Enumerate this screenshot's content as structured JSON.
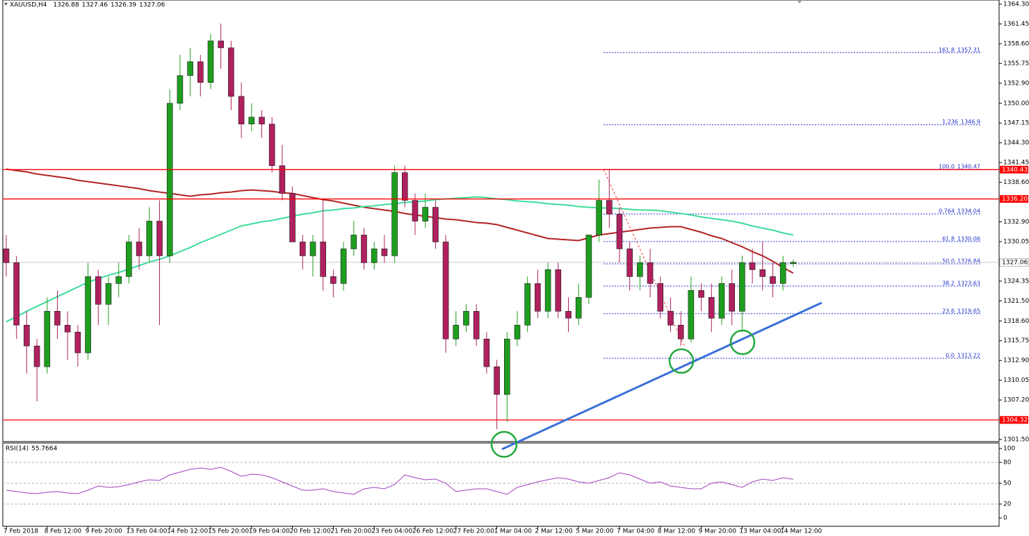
{
  "chart_data": {
    "type": "candlestick",
    "symbol": "XAUUSD,H4",
    "categories": [
      "7 Feb 2018",
      null,
      null,
      null,
      "8 Feb 12:00",
      null,
      null,
      null,
      "9 Feb 20:00",
      null,
      null,
      null,
      "13 Feb 04:00",
      null,
      null,
      null,
      "14 Feb 12:00",
      null,
      null,
      null,
      "15 Feb 20:00",
      null,
      null,
      null,
      "19 Feb 04:00",
      null,
      null,
      null,
      "20 Feb 12:00",
      null,
      null,
      null,
      "21 Feb 20:00",
      null,
      null,
      null,
      "23 Feb 04:00",
      null,
      null,
      null,
      "26 Feb 12:00",
      null,
      null,
      null,
      "27 Feb 20:00",
      null,
      null,
      null,
      "1 Mar 04:00",
      null,
      null,
      null,
      "2 Mar 12:00",
      null,
      null,
      null,
      "5 Mar 20:00",
      null,
      null,
      null,
      "7 Mar 04:00",
      null,
      null,
      null,
      "8 Mar 12:00",
      null,
      null,
      null,
      "9 Mar 20:00",
      null,
      null,
      null,
      "13 Mar 04:00",
      null,
      null,
      null,
      "14 Mar 12:00",
      null
    ],
    "candles": {
      "up_color": "#1e9e1e",
      "down_color": "#b0205e",
      "open": [
        1329,
        1327,
        1318,
        1315,
        1312,
        1320,
        1318,
        1317,
        1314,
        1325,
        1321,
        1324,
        1325,
        1330,
        1328,
        1333,
        1328,
        1350,
        1354,
        1356,
        1353,
        1359,
        1358,
        1351,
        1347,
        1348,
        1347,
        1341,
        1337,
        1330,
        1328,
        1330,
        1325,
        1324,
        1329,
        1331,
        1327,
        1329,
        1328,
        1340,
        1336,
        1333,
        1335,
        1330,
        1316,
        1318,
        1320,
        1316,
        1312,
        1308,
        1316,
        1318,
        1324,
        1320,
        1326,
        1320,
        1319,
        1322,
        1331,
        1336,
        1334,
        1329,
        1325,
        1327,
        1324,
        1320,
        1318,
        1316,
        1323,
        1322,
        1319,
        1324,
        1320,
        1327,
        1326,
        1325,
        1324,
        1326.88
      ],
      "high": [
        1331,
        1328,
        1320,
        1316,
        1322,
        1323,
        1320,
        1318,
        1327,
        1326,
        1325,
        1327,
        1331,
        1332,
        1335,
        1336,
        1352,
        1357,
        1358,
        1357,
        1360,
        1361.5,
        1359,
        1353,
        1350,
        1349,
        1348,
        1344,
        1338,
        1331,
        1331,
        1336,
        1326,
        1330,
        1333,
        1332,
        1330,
        1331,
        1341,
        1341,
        1337,
        1337,
        1336,
        1331,
        1320,
        1321,
        1321,
        1317,
        1313,
        1317,
        1320,
        1325,
        1326,
        1327,
        1327,
        1322,
        1324,
        1331,
        1339,
        1340.5,
        1335,
        1330,
        1328,
        1329,
        1325,
        1322,
        1320,
        1325,
        1324,
        1324,
        1325,
        1326,
        1328,
        1329,
        1330,
        1327,
        1328,
        1327.46
      ],
      "low": [
        1325,
        1316,
        1311,
        1307,
        1311,
        1316,
        1313,
        1312,
        1313,
        1318,
        1318,
        1322,
        1324,
        1326,
        1327,
        1318,
        1327,
        1349,
        1351,
        1351,
        1352,
        1355,
        1349,
        1345,
        1346,
        1345,
        1340,
        1336,
        1330,
        1326,
        1325,
        1323,
        1322,
        1323,
        1328,
        1326,
        1326,
        1327,
        1327,
        1335,
        1331,
        1332,
        1329,
        1314,
        1315,
        1317,
        1315,
        1311,
        1303,
        1304,
        1315,
        1317,
        1319,
        1319,
        1319,
        1317,
        1318,
        1321,
        1330,
        1332,
        1327,
        1323,
        1323,
        1322,
        1319,
        1317,
        1315,
        1315.5,
        1320,
        1317,
        1318,
        1318,
        1317,
        1324,
        1323,
        1322,
        1323,
        1326.39
      ],
      "close": [
        1327,
        1318,
        1315,
        1312,
        1320,
        1318,
        1317,
        1314,
        1325,
        1321,
        1324,
        1325,
        1330,
        1328,
        1333,
        1328,
        1350,
        1354,
        1356,
        1353,
        1359,
        1358,
        1351,
        1347,
        1348,
        1347,
        1341,
        1337,
        1330,
        1328,
        1330,
        1325,
        1324,
        1329,
        1331,
        1327,
        1329,
        1328,
        1340,
        1336,
        1333,
        1335,
        1330,
        1316,
        1318,
        1320,
        1316,
        1312,
        1308,
        1316,
        1318,
        1324,
        1320,
        1326,
        1320,
        1319,
        1322,
        1331,
        1336,
        1334,
        1329,
        1325,
        1327,
        1324,
        1320,
        1318,
        1316,
        1323,
        1322,
        1319,
        1324,
        1320,
        1327,
        1326,
        1325,
        1324,
        1327,
        1327.06
      ]
    },
    "ma": [
      {
        "color": "#b22222",
        "values": [
          1340.5,
          1340.3,
          1340.1,
          1339.8,
          1339.6,
          1339.4,
          1339.2,
          1338.9,
          1338.7,
          1338.5,
          1338.3,
          1338.1,
          1337.9,
          1337.7,
          1337.4,
          1337.2,
          1337,
          1336.8,
          1336.6,
          1336.8,
          1336.9,
          1337.1,
          1337.2,
          1337.4,
          1337.5,
          1337.4,
          1337.3,
          1337.1,
          1337,
          1336.7,
          1336.4,
          1336.1,
          1335.9,
          1335.6,
          1335.3,
          1335,
          1334.8,
          1334.6,
          1334.4,
          1334.1,
          1333.9,
          1333.7,
          1333.5,
          1333.3,
          1333.2,
          1333,
          1332.8,
          1332.7,
          1332.5,
          1332.1,
          1331.7,
          1331.3,
          1330.9,
          1330.5,
          1330.4,
          1330.3,
          1330.2,
          1330.6,
          1331,
          1331.2,
          1331.4,
          1331.6,
          1331.8,
          1332,
          1332.1,
          1332.2,
          1332.2,
          1331.8,
          1331.4,
          1330.9,
          1330.5,
          1329.9,
          1329.3,
          1328.6,
          1328,
          1327.2,
          1326.3,
          1325.5
        ]
      },
      {
        "color": "#3cdc9a",
        "values": [
          1318.5,
          1319.2,
          1320,
          1320.7,
          1321.4,
          1322.1,
          1322.8,
          1323.5,
          1324.2,
          1324.7,
          1325.2,
          1325.6,
          1326.1,
          1326.6,
          1327.1,
          1327.5,
          1328,
          1328.6,
          1329.2,
          1329.9,
          1330.5,
          1331.1,
          1331.7,
          1332.3,
          1332.6,
          1332.9,
          1333.1,
          1333.4,
          1333.7,
          1334,
          1334.2,
          1334.5,
          1334.6,
          1334.8,
          1334.9,
          1335.1,
          1335.2,
          1335.4,
          1335.5,
          1335.7,
          1335.8,
          1335.9,
          1336.1,
          1336.2,
          1336.3,
          1336.4,
          1336.5,
          1336.4,
          1336.2,
          1336.1,
          1335.9,
          1335.8,
          1335.7,
          1335.5,
          1335.4,
          1335.3,
          1335.1,
          1335,
          1334.9,
          1334.9,
          1334.8,
          1334.7,
          1334.6,
          1334.6,
          1334.5,
          1334.3,
          1334.1,
          1333.9,
          1333.6,
          1333.4,
          1333.2,
          1333,
          1332.7,
          1332.3,
          1332,
          1331.7,
          1331.3,
          1331
        ]
      }
    ],
    "ylim": [
      1301.2,
      1364.9
    ],
    "yticks": [
      {
        "value": 1364.3,
        "label": "1364.30"
      },
      1361.45,
      {
        "value": 1358.6,
        "label": "1358.60"
      },
      1355.75,
      {
        "value": 1352.9,
        "label": "1352.90"
      },
      {
        "value": 1350,
        "label": "1350.00"
      },
      1347.15,
      {
        "value": 1344.3,
        "label": "1344.30"
      },
      1341.45,
      {
        "value": 1338.6,
        "label": "1338.60"
      },
      {
        "value": 1332.9,
        "label": "1332.90"
      },
      1330.05,
      1324.35,
      {
        "value": 1321.5,
        "label": "1321.50"
      },
      {
        "value": 1318.6,
        "label": "1318.60"
      },
      1315.75,
      {
        "value": 1312.9,
        "label": "1312.90"
      },
      1310.05,
      {
        "value": 1307.2,
        "label": "1307.20"
      },
      {
        "value": 1301.5,
        "label": "1301.50"
      }
    ],
    "levels": {
      "color": "#ff0000",
      "values": [
        1340.43,
        {
          "value": 1336.2,
          "label": "1336.20"
        },
        1304.32
      ]
    },
    "fib": {
      "color": "#2233cc",
      "levels": [
        {
          "ratio": "161.8",
          "price": 1357.31
        },
        {
          "ratio": "1.236",
          "price": 1346.9
        },
        {
          "ratio": "100.0",
          "price": 1340.47
        },
        {
          "ratio": "0.764",
          "price": 1334.04
        },
        {
          "ratio": "61.8",
          "price": 1330.06
        },
        {
          "ratio": "50.0",
          "price": 1326.84
        },
        {
          "ratio": "38.2",
          "price": 1323.63
        },
        {
          "ratio": "23.6",
          "price": 1319.65
        },
        {
          "ratio": "0.0",
          "price": 1313.22
        }
      ]
    },
    "rsi": {
      "name": "RSI(14)",
      "color": "#a040c0",
      "ylim": [
        -12,
        108
      ],
      "yticks": [
        100,
        80,
        50,
        20,
        0
      ],
      "values": [
        40,
        38,
        36,
        35,
        37,
        38,
        36,
        35,
        40,
        46,
        44,
        45,
        48,
        52,
        55,
        54,
        62,
        66,
        70,
        72,
        70,
        73,
        67,
        60,
        63,
        62,
        58,
        52,
        46,
        40,
        40,
        42,
        38,
        36,
        34,
        42,
        44,
        42,
        48,
        62,
        58,
        55,
        56,
        50,
        38,
        40,
        42,
        42,
        38,
        34,
        44,
        48,
        52,
        55,
        58,
        56,
        52,
        50,
        54,
        58,
        65,
        62,
        56,
        50,
        52,
        46,
        44,
        42,
        42,
        50,
        52,
        48,
        44,
        52,
        56,
        54,
        58,
        55.7664
      ]
    }
  }
}
